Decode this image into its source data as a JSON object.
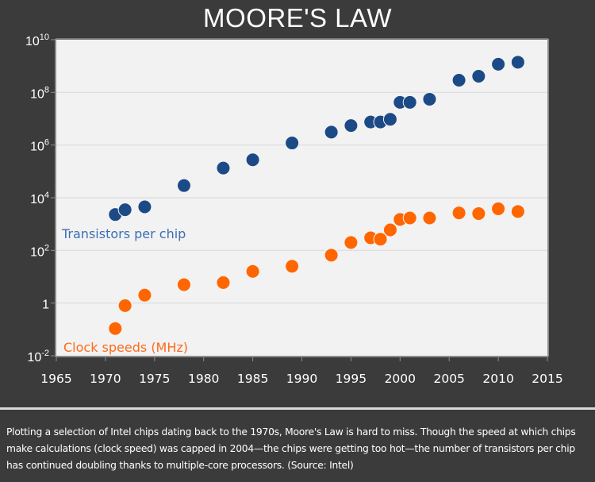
{
  "chart_data": {
    "type": "scatter",
    "title": "MOORE'S LAW",
    "xlabel": "",
    "ylabel": "",
    "xlim": [
      1965,
      2015
    ],
    "x_ticks": [
      "1965",
      "1970",
      "1975",
      "1980",
      "1985",
      "1990",
      "1995",
      "2000",
      "2005",
      "2010",
      "2015"
    ],
    "y_scale": "log",
    "ylim": [
      0.01,
      10000000000
    ],
    "y_ticks": [
      {
        "base": "10",
        "exp": "10"
      },
      {
        "base": "10",
        "exp": "8"
      },
      {
        "base": "10",
        "exp": "6"
      },
      {
        "base": "10",
        "exp": "4"
      },
      {
        "base": "10",
        "exp": "2"
      },
      {
        "base": "1",
        "exp": ""
      },
      {
        "base": "10",
        "exp": "-2"
      }
    ],
    "grid": true,
    "series": [
      {
        "name": "Transistors per chip",
        "color": "#1c4a87",
        "label_color": "#3c6eb4",
        "x": [
          1971,
          1972,
          1974,
          1978,
          1982,
          1985,
          1989,
          1993,
          1995,
          1997,
          1998,
          1999,
          2000,
          2001,
          2003,
          2006,
          2008,
          2010,
          2012
        ],
        "values": [
          2300,
          3500,
          4500,
          29000,
          134000,
          275000,
          1200000,
          3100000,
          5500000,
          7500000,
          7500000,
          9500000,
          42000000,
          42000000,
          55000000,
          290000000,
          410000000,
          1170000000,
          1400000000
        ]
      },
      {
        "name": "Clock speeds (MHz)",
        "color": "#ff6600",
        "label_color": "#ff6a1a",
        "x": [
          1971,
          1972,
          1974,
          1978,
          1982,
          1985,
          1989,
          1993,
          1995,
          1997,
          1998,
          1999,
          2000,
          2001,
          2003,
          2006,
          2008,
          2010,
          2012
        ],
        "values": [
          0.108,
          0.8,
          2,
          5,
          6,
          16,
          25,
          66,
          200,
          300,
          266,
          600,
          1500,
          1700,
          1700,
          2660,
          2500,
          3800,
          3000
        ]
      }
    ]
  },
  "caption": "Plotting a selection of Intel chips dating back to the 1970s, Moore's Law is hard to miss. Though the speed at which chips make calculations (clock speed) was capped in 2004—the chips were getting too hot—the number of transistors per chip has continued doubling thanks to multiple-core processors. (Source: Intel)"
}
